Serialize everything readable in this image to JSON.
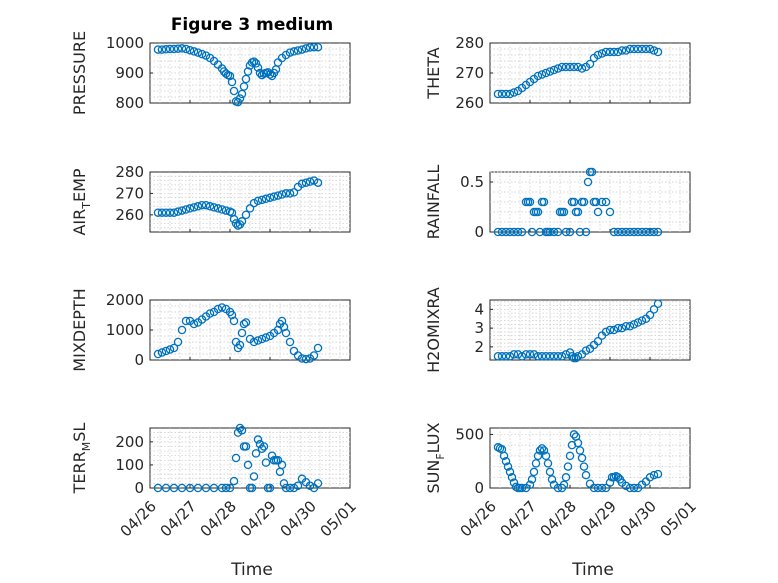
{
  "title": "Figure 3 medium",
  "chart_data": [
    {
      "id": "pressure",
      "type": "scatter",
      "ylabel": "PRESSURE",
      "ylabel_sub": "",
      "ylim": [
        800,
        1000
      ],
      "yticks": [
        800,
        900,
        1000
      ],
      "x": [
        0.2,
        0.3,
        0.4,
        0.5,
        0.6,
        0.7,
        0.8,
        0.9,
        1.0,
        1.1,
        1.2,
        1.3,
        1.4,
        1.5,
        1.6,
        1.7,
        1.8,
        1.85,
        1.9,
        1.95,
        2.0,
        2.05,
        2.1,
        2.15,
        2.2,
        2.25,
        2.3,
        2.35,
        2.4,
        2.45,
        2.5,
        2.55,
        2.6,
        2.65,
        2.7,
        2.75,
        2.8,
        2.85,
        2.9,
        2.95,
        3.0,
        3.05,
        3.1,
        3.15,
        3.2,
        3.3,
        3.4,
        3.5,
        3.6,
        3.7,
        3.8,
        3.9,
        4.0,
        4.1,
        4.2
      ],
      "y": [
        978,
        978,
        979,
        980,
        980,
        981,
        982,
        980,
        976,
        972,
        968,
        963,
        958,
        950,
        940,
        928,
        915,
        905,
        898,
        893,
        890,
        870,
        840,
        805,
        803,
        815,
        830,
        855,
        880,
        905,
        925,
        935,
        938,
        932,
        918,
        900,
        893,
        898,
        900,
        902,
        895,
        890,
        900,
        912,
        935,
        950,
        960,
        968,
        972,
        975,
        978,
        982,
        985,
        986,
        986
      ]
    },
    {
      "id": "theta",
      "type": "scatter",
      "ylabel": "THETA",
      "ylabel_sub": "",
      "ylim": [
        260,
        280
      ],
      "yticks": [
        260,
        270,
        280
      ],
      "x": [
        0.2,
        0.3,
        0.4,
        0.5,
        0.6,
        0.7,
        0.8,
        0.9,
        1.0,
        1.1,
        1.2,
        1.3,
        1.4,
        1.5,
        1.6,
        1.7,
        1.8,
        1.9,
        2.0,
        2.1,
        2.2,
        2.3,
        2.4,
        2.5,
        2.6,
        2.7,
        2.8,
        2.9,
        3.0,
        3.1,
        3.2,
        3.3,
        3.4,
        3.5,
        3.6,
        3.7,
        3.8,
        3.9,
        4.0,
        4.1,
        4.2
      ],
      "y": [
        263,
        263,
        263,
        263,
        263.5,
        264,
        265,
        266,
        267,
        268,
        269,
        269.5,
        270,
        270.5,
        271,
        271.5,
        272,
        272,
        272,
        272,
        272,
        271.5,
        272,
        273,
        275,
        276,
        276.5,
        277,
        277,
        277,
        277,
        277.5,
        277.5,
        278,
        278,
        278,
        278,
        278,
        278,
        277.5,
        277
      ]
    },
    {
      "id": "air_temp",
      "type": "scatter",
      "ylabel": "AIR",
      "ylabel_sub": "T",
      "ylabel_rest": "EMP",
      "ylim": [
        252,
        280
      ],
      "yticks": [
        260,
        270,
        280
      ],
      "x": [
        0.2,
        0.3,
        0.4,
        0.5,
        0.6,
        0.7,
        0.8,
        0.9,
        1.0,
        1.1,
        1.2,
        1.3,
        1.4,
        1.5,
        1.6,
        1.7,
        1.8,
        1.9,
        2.0,
        2.05,
        2.1,
        2.15,
        2.2,
        2.25,
        2.3,
        2.4,
        2.5,
        2.6,
        2.7,
        2.8,
        2.9,
        3.0,
        3.1,
        3.2,
        3.3,
        3.4,
        3.5,
        3.6,
        3.7,
        3.8,
        3.9,
        4.0,
        4.1,
        4.2
      ],
      "y": [
        261,
        261,
        261,
        261,
        261,
        261.5,
        262,
        262.5,
        263,
        263.5,
        264,
        264.5,
        264.5,
        264,
        263.5,
        263,
        262.5,
        262,
        261.5,
        261,
        258,
        256,
        255,
        255.5,
        257,
        260,
        263,
        265.5,
        266.5,
        267,
        267.5,
        268,
        268.5,
        269,
        269.5,
        270,
        270,
        270.5,
        273,
        274.5,
        275,
        275.5,
        276,
        275
      ]
    },
    {
      "id": "rainfall",
      "type": "scatter",
      "ylabel": "RAINFALL",
      "ylabel_sub": "",
      "ylim": [
        0,
        0.6
      ],
      "yticks": [
        0,
        0.5
      ],
      "x": [
        0.2,
        0.3,
        0.4,
        0.5,
        0.6,
        0.7,
        0.8,
        0.9,
        0.95,
        1.0,
        1.05,
        1.1,
        1.15,
        1.2,
        1.25,
        1.3,
        1.35,
        1.4,
        1.45,
        1.5,
        1.6,
        1.7,
        1.75,
        1.8,
        1.85,
        1.9,
        2.0,
        2.05,
        2.1,
        2.15,
        2.2,
        2.25,
        2.3,
        2.35,
        2.4,
        2.45,
        2.5,
        2.55,
        2.6,
        2.65,
        2.7,
        2.8,
        2.9,
        3.0,
        3.1,
        3.2,
        3.3,
        3.4,
        3.5,
        3.6,
        3.7,
        3.8,
        3.9,
        4.0,
        4.1,
        4.2
      ],
      "y": [
        0,
        0,
        0,
        0,
        0,
        0,
        0,
        0.3,
        0.3,
        0.3,
        0,
        0.2,
        0.2,
        0.2,
        0,
        0.3,
        0.3,
        0,
        0,
        0,
        0,
        0,
        0.2,
        0.2,
        0.2,
        0,
        0,
        0.3,
        0.3,
        0.2,
        0.2,
        0,
        0.3,
        0.3,
        0,
        0.5,
        0.6,
        0.6,
        0.3,
        0.3,
        0.2,
        0.3,
        0.3,
        0.2,
        0,
        0,
        0,
        0,
        0,
        0,
        0,
        0,
        0,
        0,
        0,
        0
      ]
    },
    {
      "id": "mixdepth",
      "type": "scatter",
      "ylabel": "MIXDEPTH",
      "ylabel_sub": "",
      "ylim": [
        0,
        2000
      ],
      "yticks": [
        0,
        1000,
        2000
      ],
      "x": [
        0.2,
        0.3,
        0.4,
        0.5,
        0.6,
        0.7,
        0.8,
        0.9,
        1.0,
        1.1,
        1.2,
        1.3,
        1.4,
        1.5,
        1.6,
        1.7,
        1.8,
        1.9,
        2.0,
        2.05,
        2.1,
        2.15,
        2.2,
        2.25,
        2.3,
        2.35,
        2.4,
        2.5,
        2.6,
        2.7,
        2.8,
        2.9,
        3.0,
        3.1,
        3.2,
        3.25,
        3.3,
        3.35,
        3.4,
        3.5,
        3.6,
        3.7,
        3.8,
        3.9,
        4.0,
        4.1,
        4.2
      ],
      "y": [
        200,
        250,
        300,
        350,
        400,
        600,
        1000,
        1300,
        1300,
        1200,
        1250,
        1350,
        1450,
        1550,
        1600,
        1700,
        1750,
        1700,
        1600,
        1500,
        1300,
        600,
        400,
        500,
        900,
        1200,
        1250,
        700,
        600,
        650,
        700,
        750,
        800,
        900,
        1000,
        1200,
        1300,
        1100,
        900,
        600,
        300,
        150,
        50,
        30,
        50,
        150,
        400
      ]
    },
    {
      "id": "h2omixra",
      "type": "scatter",
      "ylabel": "H2OMIXRA",
      "ylabel_sub": "",
      "ylim": [
        1.3,
        4.5
      ],
      "yticks": [
        2,
        3,
        4
      ],
      "x": [
        0.2,
        0.3,
        0.4,
        0.5,
        0.6,
        0.7,
        0.8,
        0.9,
        1.0,
        1.1,
        1.2,
        1.3,
        1.4,
        1.5,
        1.6,
        1.7,
        1.8,
        1.9,
        2.0,
        2.05,
        2.1,
        2.15,
        2.2,
        2.3,
        2.4,
        2.5,
        2.6,
        2.7,
        2.8,
        2.9,
        3.0,
        3.1,
        3.2,
        3.3,
        3.4,
        3.5,
        3.6,
        3.7,
        3.8,
        3.9,
        4.0,
        4.1,
        4.2
      ],
      "y": [
        1.5,
        1.5,
        1.5,
        1.5,
        1.6,
        1.6,
        1.5,
        1.6,
        1.6,
        1.6,
        1.5,
        1.5,
        1.5,
        1.5,
        1.5,
        1.5,
        1.5,
        1.6,
        1.7,
        1.5,
        1.4,
        1.4,
        1.5,
        1.6,
        1.8,
        1.9,
        2.1,
        2.3,
        2.6,
        2.8,
        2.9,
        2.9,
        3.0,
        3.0,
        3.1,
        3.1,
        3.2,
        3.3,
        3.4,
        3.5,
        3.7,
        4.0,
        4.3
      ]
    },
    {
      "id": "terr_msl",
      "type": "scatter",
      "ylabel": "TERR",
      "ylabel_sub": "M",
      "ylabel_rest": "SL",
      "ylim": [
        0,
        260
      ],
      "yticks": [
        0,
        100,
        200
      ],
      "x": [
        0.2,
        0.4,
        0.6,
        0.8,
        1.0,
        1.2,
        1.4,
        1.6,
        1.8,
        1.9,
        2.0,
        2.1,
        2.15,
        2.2,
        2.25,
        2.3,
        2.35,
        2.4,
        2.45,
        2.5,
        2.55,
        2.6,
        2.65,
        2.7,
        2.75,
        2.8,
        2.85,
        2.9,
        2.95,
        3.0,
        3.05,
        3.1,
        3.15,
        3.2,
        3.25,
        3.3,
        3.35,
        3.4,
        3.5,
        3.6,
        3.7,
        3.8,
        3.9,
        4.0,
        4.1,
        4.2
      ],
      "y": [
        0,
        0,
        0,
        0,
        0,
        0,
        0,
        0,
        0,
        0,
        0,
        30,
        130,
        240,
        260,
        250,
        180,
        180,
        100,
        0,
        0,
        50,
        150,
        210,
        190,
        170,
        180,
        110,
        0,
        0,
        140,
        120,
        120,
        120,
        70,
        100,
        20,
        0,
        0,
        0,
        10,
        40,
        25,
        10,
        0,
        20
      ]
    },
    {
      "id": "sun_flux",
      "type": "scatter",
      "ylabel": "SUN",
      "ylabel_sub": "F",
      "ylabel_rest": "LUX",
      "ylim": [
        0,
        560
      ],
      "yticks": [
        0,
        500
      ],
      "x": [
        0.2,
        0.25,
        0.3,
        0.35,
        0.4,
        0.45,
        0.5,
        0.55,
        0.6,
        0.65,
        0.7,
        0.75,
        0.8,
        0.9,
        1.0,
        1.05,
        1.1,
        1.15,
        1.2,
        1.25,
        1.3,
        1.35,
        1.4,
        1.45,
        1.5,
        1.55,
        1.6,
        1.7,
        1.8,
        1.85,
        1.9,
        1.95,
        2.0,
        2.05,
        2.1,
        2.15,
        2.2,
        2.25,
        2.3,
        2.35,
        2.4,
        2.5,
        2.6,
        2.7,
        2.8,
        2.9,
        3.0,
        3.05,
        3.1,
        3.15,
        3.2,
        3.25,
        3.3,
        3.4,
        3.5,
        3.6,
        3.7,
        3.8,
        3.9,
        4.0,
        4.1,
        4.2
      ],
      "y": [
        380,
        370,
        360,
        300,
        250,
        200,
        150,
        100,
        50,
        10,
        0,
        0,
        0,
        0,
        30,
        80,
        150,
        230,
        300,
        350,
        370,
        350,
        300,
        230,
        150,
        80,
        30,
        0,
        0,
        30,
        100,
        200,
        300,
        400,
        500,
        480,
        420,
        350,
        280,
        200,
        120,
        40,
        0,
        0,
        0,
        0,
        50,
        100,
        100,
        110,
        100,
        80,
        50,
        20,
        0,
        0,
        0,
        30,
        60,
        100,
        120,
        130
      ]
    }
  ],
  "x_ticklabels": [
    "04/26",
    "04/27",
    "04/28",
    "04/29",
    "04/30",
    "05/01"
  ],
  "xlabel": "Time"
}
